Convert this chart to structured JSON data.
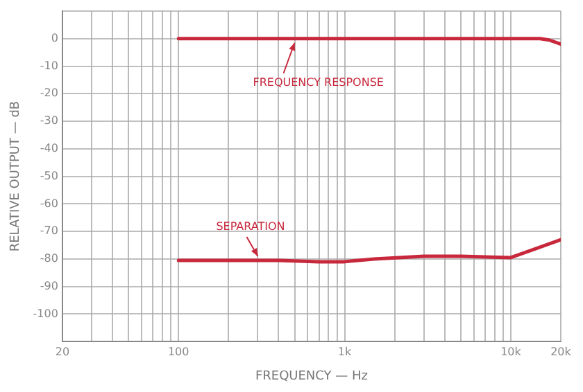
{
  "chart_data": {
    "type": "line",
    "xlabel": "FREQUENCY — Hz",
    "ylabel": "RELATIVE OUTPUT — dB",
    "log": "x",
    "grid": true,
    "legend": false,
    "marker": "none",
    "line_style": "solid",
    "xlim": [
      20,
      20000
    ],
    "ylim": [
      -110,
      10
    ],
    "xticks": [
      20,
      {
        "value": 30,
        "label": null
      },
      {
        "value": 40,
        "label": null
      },
      {
        "value": 50,
        "label": null
      },
      {
        "value": 60,
        "label": null
      },
      {
        "value": 70,
        "label": null
      },
      {
        "value": 80,
        "label": null
      },
      {
        "value": 90,
        "label": null
      },
      100,
      {
        "value": 200,
        "label": null
      },
      {
        "value": 300,
        "label": null
      },
      {
        "value": 400,
        "label": null
      },
      {
        "value": 500,
        "label": null
      },
      {
        "value": 600,
        "label": null
      },
      {
        "value": 700,
        "label": null
      },
      {
        "value": 800,
        "label": null
      },
      {
        "value": 900,
        "label": null
      },
      {
        "value": 1000,
        "label": "1k"
      },
      {
        "value": 2000,
        "label": null
      },
      {
        "value": 3000,
        "label": null
      },
      {
        "value": 4000,
        "label": null
      },
      {
        "value": 5000,
        "label": null
      },
      {
        "value": 6000,
        "label": null
      },
      {
        "value": 7000,
        "label": null
      },
      {
        "value": 8000,
        "label": null
      },
      {
        "value": 9000,
        "label": null
      },
      {
        "value": 10000,
        "label": "10k"
      },
      {
        "value": 20000,
        "label": "20k"
      }
    ],
    "yticks": [
      {
        "value": 10,
        "label": null
      },
      0,
      -10,
      -20,
      -30,
      -40,
      -50,
      -60,
      -70,
      -80,
      -90,
      -100,
      {
        "value": -110,
        "label": null
      }
    ],
    "series": [
      {
        "color": "#c8283c",
        "x": [
          100,
          1000,
          10000,
          15000,
          17000,
          20000
        ],
        "values": [
          0,
          0,
          0,
          0,
          -0.5,
          -2
        ]
      },
      {
        "color": "#c8283c",
        "x": [
          100,
          400,
          700,
          1000,
          1500,
          3000,
          5000,
          10000,
          20000
        ],
        "values": [
          -80.5,
          -80.5,
          -81,
          -81,
          -80,
          -79,
          -79,
          -79.5,
          -73
        ]
      }
    ],
    "annotations": [
      {
        "text": "FREQUENCY RESPONSE",
        "x": 500,
        "y": 0
      },
      {
        "text": "SEPARATION",
        "x": 300,
        "y": -80.5
      }
    ]
  }
}
